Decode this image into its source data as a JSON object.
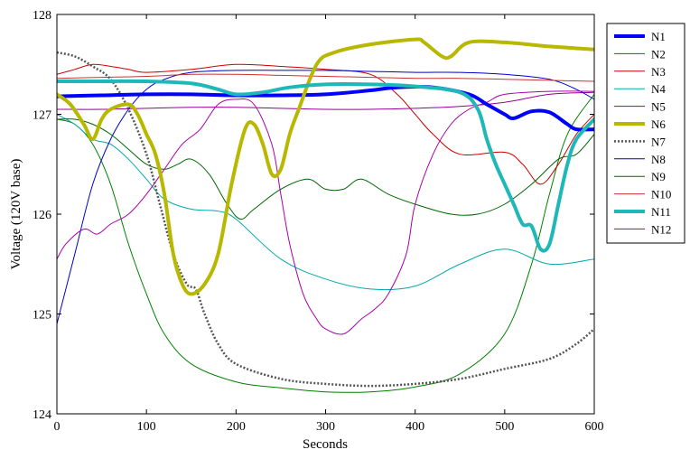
{
  "chart_data": {
    "type": "line",
    "title": "",
    "xlabel": "Seconds",
    "ylabel": "Voltage (120V base)",
    "xlim": [
      0,
      600
    ],
    "ylim": [
      124,
      128
    ],
    "xticks": [
      0,
      100,
      200,
      300,
      400,
      500,
      600
    ],
    "yticks": [
      124,
      125,
      126,
      127,
      128
    ],
    "grid": false,
    "legend_position": "right, outside plot",
    "series": [
      {
        "name": "N1",
        "color": "#0000ff",
        "width": 4,
        "dash": "",
        "x": [
          0,
          50,
          100,
          150,
          200,
          250,
          300,
          350,
          380,
          420,
          460,
          480,
          500,
          510,
          530,
          550,
          570,
          580,
          600
        ],
        "y": [
          127.18,
          127.19,
          127.2,
          127.2,
          127.19,
          127.19,
          127.2,
          127.24,
          127.27,
          127.27,
          127.2,
          127.1,
          127.0,
          126.96,
          127.03,
          127.02,
          126.9,
          126.85,
          126.85
        ]
      },
      {
        "name": "N2",
        "color": "#008000",
        "width": 1,
        "dash": "",
        "x": [
          0,
          20,
          40,
          60,
          80,
          100,
          120,
          150,
          200,
          250,
          300,
          350,
          400,
          450,
          500,
          530,
          550,
          570,
          600
        ],
        "y": [
          126.95,
          126.9,
          126.7,
          126.3,
          125.7,
          125.2,
          124.8,
          124.5,
          124.32,
          124.26,
          124.22,
          124.22,
          124.27,
          124.4,
          124.8,
          125.5,
          126.2,
          126.8,
          127.2
        ]
      },
      {
        "name": "N3",
        "color": "#cc0000",
        "width": 1,
        "dash": "",
        "x": [
          0,
          20,
          40,
          60,
          80,
          100,
          150,
          200,
          250,
          300,
          350,
          380,
          400,
          420,
          450,
          500,
          520,
          540,
          560,
          580,
          600
        ],
        "y": [
          127.4,
          127.45,
          127.5,
          127.48,
          127.45,
          127.42,
          127.45,
          127.5,
          127.48,
          127.45,
          127.4,
          127.2,
          127.0,
          126.8,
          126.6,
          126.62,
          126.5,
          126.3,
          126.5,
          126.8,
          127.0
        ]
      },
      {
        "name": "N4",
        "color": "#00aaaa",
        "width": 1,
        "dash": "",
        "x": [
          0,
          20,
          40,
          60,
          80,
          100,
          120,
          150,
          180,
          200,
          250,
          300,
          350,
          400,
          450,
          500,
          550,
          600
        ],
        "y": [
          127.0,
          126.9,
          126.75,
          126.7,
          126.55,
          126.35,
          126.15,
          126.05,
          126.03,
          125.95,
          125.55,
          125.35,
          125.25,
          125.28,
          125.5,
          125.65,
          125.5,
          125.55
        ]
      },
      {
        "name": "N5",
        "color": "#990099",
        "width": 1,
        "dash": "",
        "x": [
          0,
          50,
          100,
          150,
          200,
          250,
          300,
          350,
          400,
          450,
          500,
          550,
          600
        ],
        "y": [
          127.05,
          127.05,
          127.06,
          127.07,
          127.07,
          127.06,
          127.05,
          127.05,
          127.06,
          127.08,
          127.12,
          127.2,
          127.22
        ]
      },
      {
        "name": "N6",
        "color": "#b8b800",
        "width": 4,
        "dash": "",
        "x": [
          0,
          15,
          30,
          40,
          50,
          60,
          80,
          90,
          100,
          110,
          120,
          130,
          140,
          150,
          165,
          180,
          195,
          210,
          220,
          230,
          240,
          250,
          260,
          270,
          290,
          310,
          350,
          400,
          410,
          430,
          440,
          460,
          500,
          550,
          600
        ],
        "y": [
          127.2,
          127.1,
          126.9,
          126.75,
          126.95,
          127.05,
          127.1,
          127.0,
          126.8,
          126.6,
          126.2,
          125.6,
          125.3,
          125.2,
          125.3,
          125.6,
          126.3,
          126.85,
          126.9,
          126.7,
          126.4,
          126.45,
          126.8,
          127.05,
          127.5,
          127.62,
          127.7,
          127.75,
          127.72,
          127.58,
          127.58,
          127.72,
          127.72,
          127.68,
          127.65
        ]
      },
      {
        "name": "N7",
        "color": "#555555",
        "width": 2.5,
        "dash": "2,2",
        "x": [
          0,
          20,
          40,
          60,
          80,
          100,
          115,
          130,
          145,
          155,
          165,
          180,
          200,
          250,
          300,
          350,
          400,
          450,
          500,
          550,
          580,
          600
        ],
        "y": [
          127.62,
          127.58,
          127.48,
          127.35,
          127.05,
          126.6,
          126.1,
          125.6,
          125.3,
          125.25,
          125.0,
          124.7,
          124.5,
          124.35,
          124.3,
          124.28,
          124.3,
          124.35,
          124.45,
          124.55,
          124.7,
          124.85
        ]
      },
      {
        "name": "N8",
        "color": "#0000cc",
        "width": 1,
        "dash": "",
        "x": [
          0,
          20,
          40,
          60,
          80,
          100,
          120,
          150,
          200,
          250,
          300,
          350,
          400,
          450,
          500,
          550,
          580,
          600
        ],
        "y": [
          124.9,
          125.6,
          126.3,
          126.75,
          127.05,
          127.25,
          127.35,
          127.42,
          127.44,
          127.44,
          127.44,
          127.43,
          127.42,
          127.42,
          127.4,
          127.35,
          127.25,
          127.15
        ]
      },
      {
        "name": "N9",
        "color": "#006600",
        "width": 1,
        "dash": "",
        "x": [
          0,
          20,
          40,
          60,
          80,
          100,
          120,
          135,
          150,
          170,
          190,
          205,
          220,
          250,
          280,
          300,
          320,
          340,
          370,
          400,
          440,
          470,
          500,
          530,
          560,
          580,
          600
        ],
        "y": [
          126.95,
          126.95,
          126.9,
          126.8,
          126.65,
          126.5,
          126.45,
          126.5,
          126.55,
          126.4,
          126.1,
          125.95,
          126.05,
          126.25,
          126.35,
          126.25,
          126.25,
          126.35,
          126.2,
          126.1,
          126.0,
          126.0,
          126.1,
          126.3,
          126.55,
          126.6,
          126.8
        ]
      },
      {
        "name": "N10",
        "color": "#cc3333",
        "width": 1,
        "dash": "",
        "x": [
          0,
          50,
          100,
          150,
          200,
          250,
          300,
          350,
          400,
          450,
          500,
          550,
          600
        ],
        "y": [
          127.36,
          127.37,
          127.38,
          127.4,
          127.4,
          127.39,
          127.38,
          127.37,
          127.36,
          127.36,
          127.35,
          127.34,
          127.33
        ]
      },
      {
        "name": "N11",
        "color": "#1fb8b8",
        "width": 4,
        "dash": "",
        "x": [
          0,
          50,
          100,
          150,
          180,
          200,
          230,
          260,
          300,
          350,
          400,
          450,
          470,
          480,
          490,
          500,
          510,
          520,
          530,
          540,
          550,
          560,
          570,
          580,
          600
        ],
        "y": [
          127.33,
          127.33,
          127.33,
          127.31,
          127.25,
          127.2,
          127.22,
          127.27,
          127.3,
          127.3,
          127.28,
          127.22,
          127.05,
          126.75,
          126.5,
          126.3,
          126.1,
          125.9,
          125.88,
          125.65,
          125.7,
          126.1,
          126.5,
          126.75,
          126.95
        ]
      },
      {
        "name": "N12",
        "color": "#aa00aa",
        "width": 1,
        "dash": "",
        "x": [
          0,
          10,
          30,
          45,
          60,
          80,
          100,
          120,
          140,
          160,
          180,
          200,
          220,
          240,
          250,
          260,
          275,
          290,
          300,
          320,
          340,
          355,
          370,
          390,
          400,
          420,
          440,
          460,
          480,
          500,
          550,
          600
        ],
        "y": [
          125.55,
          125.7,
          125.85,
          125.8,
          125.9,
          126.0,
          126.2,
          126.45,
          126.7,
          126.85,
          127.1,
          127.15,
          127.1,
          126.7,
          126.2,
          125.7,
          125.2,
          124.95,
          124.85,
          124.8,
          124.95,
          125.05,
          125.2,
          125.6,
          126.1,
          126.6,
          126.9,
          127.05,
          127.12,
          127.2,
          127.23,
          127.23
        ]
      }
    ]
  }
}
